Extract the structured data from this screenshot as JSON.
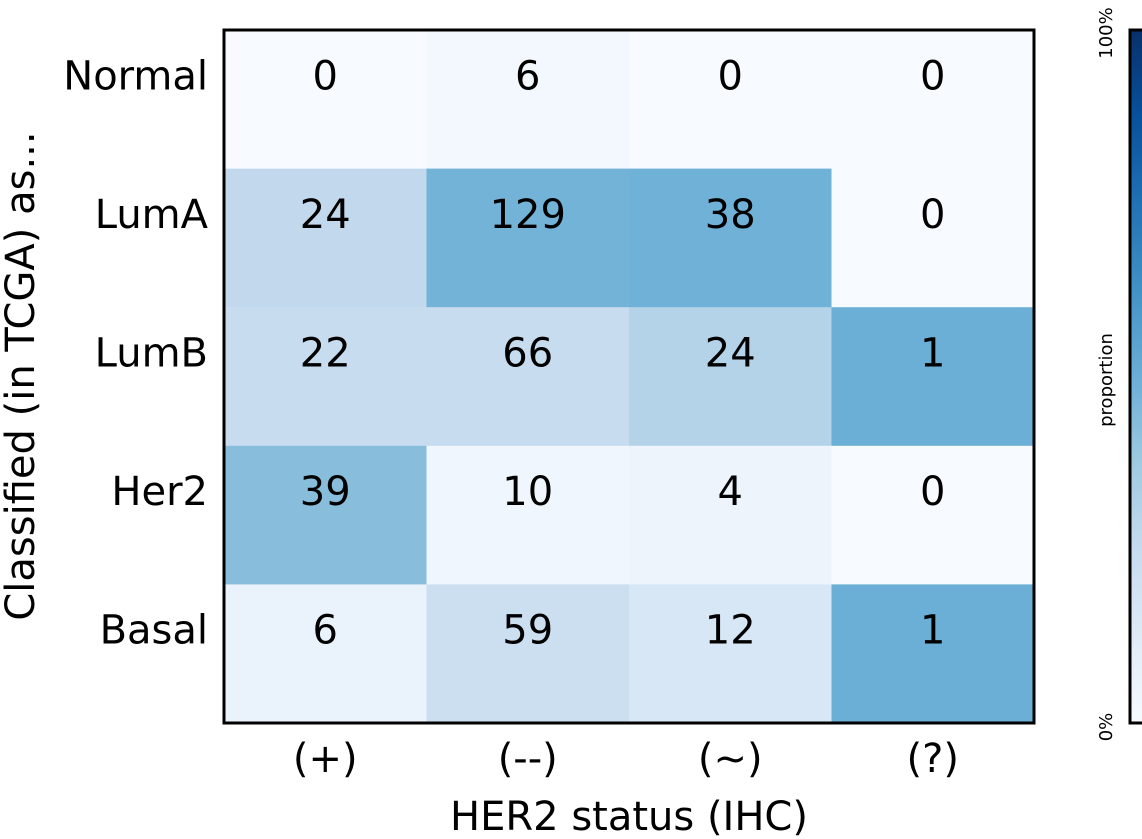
{
  "chart_data": {
    "type": "heatmap",
    "title": "",
    "xlabel": "HER2 status (IHC)",
    "ylabel": "Classified (in TCGA) as...",
    "x_categories": [
      "(+)",
      "(--)",
      "(~)",
      "(?)"
    ],
    "y_categories": [
      "Normal",
      "LumA",
      "LumB",
      "Her2",
      "Basal"
    ],
    "values": [
      [
        0,
        6,
        0,
        0
      ],
      [
        24,
        129,
        38,
        0
      ],
      [
        22,
        66,
        24,
        1
      ],
      [
        39,
        10,
        4,
        0
      ],
      [
        6,
        59,
        12,
        1
      ]
    ],
    "colorbar": {
      "label": "proportion",
      "min_label": "0%",
      "max_label": "100%",
      "range": [
        0,
        1
      ],
      "colormap": "Blues",
      "color_low": "#f7fbff",
      "color_high": "#08519c"
    },
    "grid": false,
    "color_scale_note": "cell shading is the count's share of its column total"
  }
}
